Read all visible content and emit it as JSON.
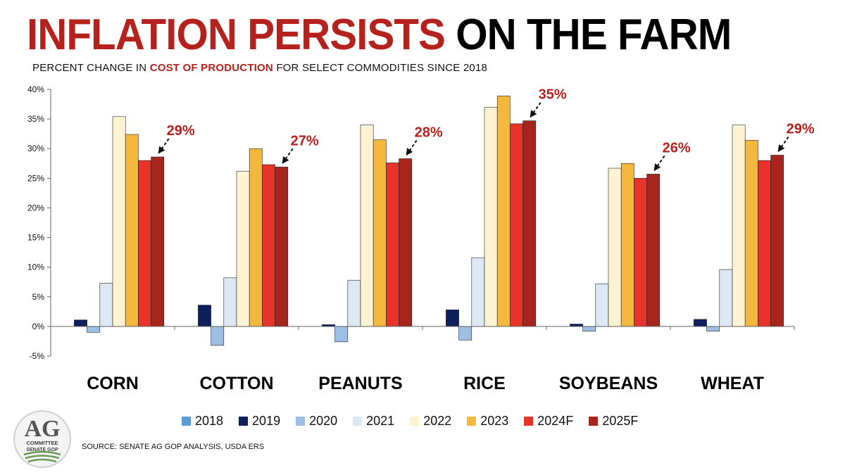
{
  "title": {
    "part1": "INFLATION PERSISTS",
    "part2": " ON THE FARM"
  },
  "subtitle": {
    "prefix": "PERCENT CHANGE IN ",
    "emphasis": "COST OF PRODUCTION",
    "suffix": " FOR SELECT COMMODITIES SINCE 2018"
  },
  "source": "SOURCE: SENATE AG GOP ANALYSIS, USDA ERS",
  "logo": {
    "line1": "AG",
    "line2": "COMMITTEE",
    "line3": "SENATE GOP"
  },
  "colors": {
    "accent": "#b5211c",
    "axis": "#666666"
  },
  "chart_data": {
    "type": "bar",
    "title": "INFLATION PERSISTS ON THE FARM",
    "subtitle": "PERCENT CHANGE IN COST OF PRODUCTION FOR SELECT COMMODITIES SINCE 2018",
    "categories": [
      "CORN",
      "COTTON",
      "PEANUTS",
      "RICE",
      "SOYBEANS",
      "WHEAT"
    ],
    "ylim": [
      -5,
      40
    ],
    "yticks": [
      -5,
      0,
      5,
      10,
      15,
      20,
      25,
      30,
      35,
      40
    ],
    "ytick_labels": [
      "-5%",
      "0%",
      "5%",
      "10%",
      "15%",
      "20%",
      "25%",
      "30%",
      "35%",
      "40%"
    ],
    "grid": false,
    "legend_position": "bottom",
    "series": [
      {
        "name": "2018",
        "color": "#5b9bd5",
        "values": [
          0,
          0,
          0,
          0,
          0,
          0
        ]
      },
      {
        "name": "2019",
        "color": "#0e1f5b",
        "values": [
          1.1,
          3.6,
          0.3,
          2.8,
          0.4,
          1.2
        ]
      },
      {
        "name": "2020",
        "color": "#9dbfe4",
        "values": [
          -1.0,
          -3.2,
          -2.6,
          -2.3,
          -0.8,
          -0.8
        ]
      },
      {
        "name": "2021",
        "color": "#dde8f5",
        "values": [
          7.3,
          8.2,
          7.8,
          11.6,
          7.2,
          9.6
        ]
      },
      {
        "name": "2022",
        "color": "#fdf3d2",
        "values": [
          35.4,
          26.2,
          34.0,
          37.0,
          26.7,
          34.0
        ]
      },
      {
        "name": "2023",
        "color": "#f3b83c",
        "values": [
          32.4,
          30.0,
          31.5,
          38.9,
          27.5,
          31.4
        ]
      },
      {
        "name": "2024F",
        "color": "#e8332a",
        "values": [
          28.0,
          27.3,
          27.6,
          34.2,
          25.0,
          28.0
        ]
      },
      {
        "name": "2025F",
        "color": "#a8251e",
        "values": [
          28.6,
          26.9,
          28.3,
          34.7,
          25.7,
          28.9
        ]
      }
    ],
    "annotations": [
      "29%",
      "27%",
      "28%",
      "35%",
      "26%",
      "29%"
    ]
  }
}
